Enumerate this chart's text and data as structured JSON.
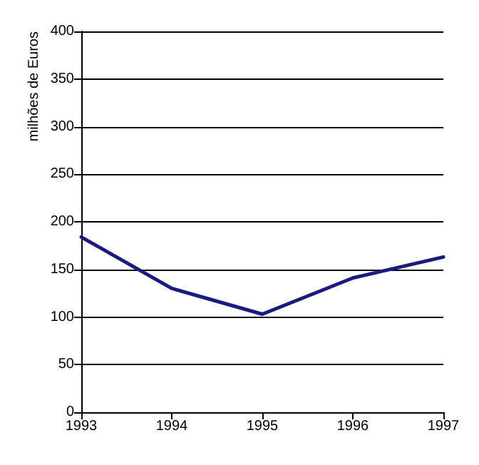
{
  "chart_data": {
    "type": "line",
    "ylabel": "milhões de Euros",
    "x": [
      1993,
      1994,
      1995,
      1996,
      1997
    ],
    "series": [
      {
        "color": "#1a1a80",
        "values": [
          184,
          130,
          103,
          141,
          163
        ]
      }
    ],
    "xlim": [
      1993,
      1997
    ],
    "xticks": [
      1993,
      1994,
      1995,
      1996,
      1997
    ],
    "ylim": [
      0,
      400
    ],
    "yticks": [
      0,
      50,
      100,
      150,
      200,
      250,
      300,
      350,
      400
    ],
    "grid": "y",
    "marker": "none",
    "line_style": "solid"
  }
}
